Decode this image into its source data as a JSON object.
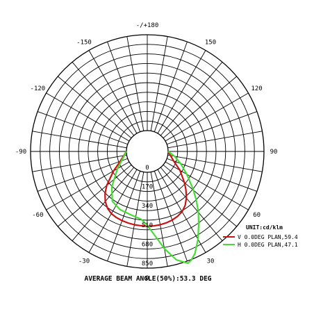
{
  "chart_data": {
    "type": "polar",
    "unit_label": "UNIT:cd/klm",
    "footer": "AVERAGE BEAM ANGLE(50%):53.3 DEG",
    "angle_labels": [
      {
        "angle": 180,
        "text": "-/+180"
      },
      {
        "angle": 150,
        "text": "150"
      },
      {
        "angle": 120,
        "text": "120"
      },
      {
        "angle": 90,
        "text": "90"
      },
      {
        "angle": 60,
        "text": "60"
      },
      {
        "angle": 30,
        "text": "30"
      },
      {
        "angle": 0,
        "text": "0"
      },
      {
        "angle": -30,
        "text": "-30"
      },
      {
        "angle": -60,
        "text": "-60"
      },
      {
        "angle": -90,
        "text": "-90"
      },
      {
        "angle": -120,
        "text": "-120"
      },
      {
        "angle": -150,
        "text": "-150"
      }
    ],
    "radial_tick_labels": [
      "0",
      "170",
      "340",
      "510",
      "680",
      "850"
    ],
    "radial_max": 850,
    "series": [
      {
        "name": "V 0.0DEG PLAN,59.4",
        "color": "#cc1111",
        "points": [
          [
            -90,
            0
          ],
          [
            -70,
            70
          ],
          [
            -60,
            160
          ],
          [
            -50,
            285
          ],
          [
            -45,
            345
          ],
          [
            -40,
            395
          ],
          [
            -35,
            430
          ],
          [
            -30,
            452
          ],
          [
            -25,
            462
          ],
          [
            -20,
            468
          ],
          [
            -15,
            472
          ],
          [
            -10,
            475
          ],
          [
            -5,
            476
          ],
          [
            0,
            478
          ],
          [
            5,
            478
          ],
          [
            10,
            475
          ],
          [
            15,
            470
          ],
          [
            20,
            462
          ],
          [
            25,
            450
          ],
          [
            30,
            432
          ],
          [
            35,
            400
          ],
          [
            40,
            355
          ],
          [
            45,
            300
          ],
          [
            50,
            245
          ],
          [
            60,
            150
          ],
          [
            70,
            65
          ],
          [
            90,
            0
          ]
        ]
      },
      {
        "name": "H 0.0DEG PLAN,47.1",
        "color": "#44dd33",
        "points": [
          [
            -90,
            0
          ],
          [
            -60,
            120
          ],
          [
            -45,
            260
          ],
          [
            -35,
            355
          ],
          [
            -25,
            385
          ],
          [
            -15,
            395
          ],
          [
            -5,
            420
          ],
          [
            0,
            470
          ],
          [
            5,
            560
          ],
          [
            10,
            690
          ],
          [
            15,
            810
          ],
          [
            20,
            870
          ],
          [
            22,
            855
          ],
          [
            25,
            815
          ],
          [
            30,
            715
          ],
          [
            35,
            610
          ],
          [
            40,
            520
          ],
          [
            45,
            430
          ],
          [
            50,
            350
          ],
          [
            55,
            275
          ],
          [
            60,
            220
          ],
          [
            70,
            130
          ],
          [
            80,
            60
          ],
          [
            90,
            0
          ]
        ]
      }
    ]
  }
}
